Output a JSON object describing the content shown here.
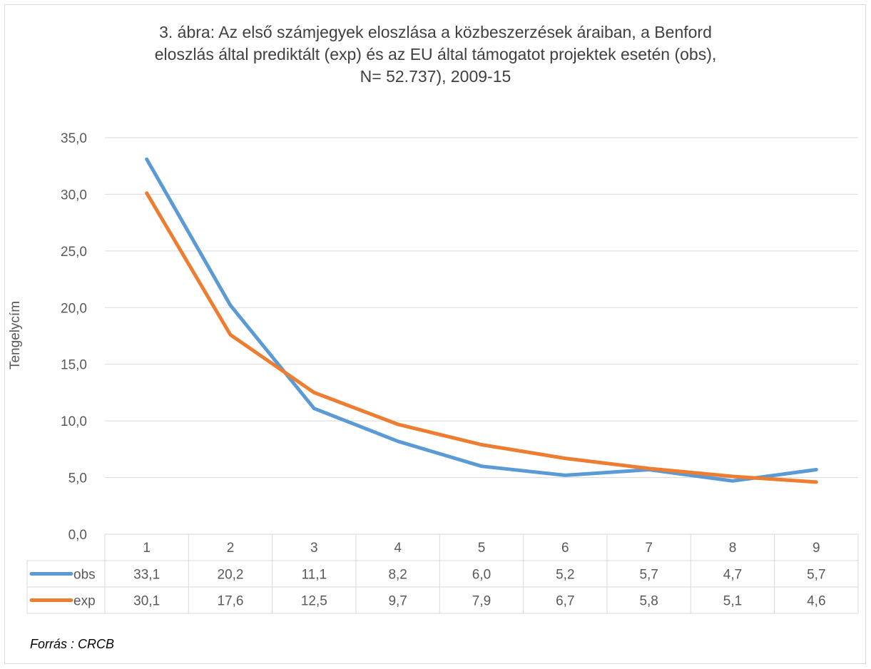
{
  "title_lines": [
    "3. ábra: Az első számjegyek eloszlása a közbeszerzések áraiban, a Benford",
    "eloszlás által prediktált (exp) és az EU által támogatot projektek esetén (obs),",
    "N= 52.737),  2009-15"
  ],
  "source": "Forrás : CRCB",
  "chart_data": {
    "type": "line",
    "title": "3. ábra: Az első számjegyek eloszlása a közbeszerzések áraiban, a Benford eloszlás által prediktált (exp) és az EU által támogatot projektek esetén (obs), N= 52.737),  2009-15",
    "xlabel": "",
    "ylabel": "Tengelycím",
    "ylim": [
      0,
      35
    ],
    "ytick_labels": [
      "0,0",
      "5,0",
      "10,0",
      "15,0",
      "20,0",
      "25,0",
      "30,0",
      "35,0"
    ],
    "categories": [
      "1",
      "2",
      "3",
      "4",
      "5",
      "6",
      "7",
      "8",
      "9"
    ],
    "grid": true,
    "legend": "data-table",
    "series": [
      {
        "name": "obs",
        "color": "#5b9bd5",
        "values": [
          33.1,
          20.2,
          11.1,
          8.2,
          6.0,
          5.2,
          5.7,
          4.7,
          5.7
        ],
        "labels": [
          "33,1",
          "20,2",
          "11,1",
          "8,2",
          "6,0",
          "5,2",
          "5,7",
          "4,7",
          "5,7"
        ]
      },
      {
        "name": "exp",
        "color": "#ed7d31",
        "values": [
          30.1,
          17.6,
          12.5,
          9.7,
          7.9,
          6.7,
          5.8,
          5.1,
          4.6
        ],
        "labels": [
          "30,1",
          "17,6",
          "12,5",
          "9,7",
          "7,9",
          "6,7",
          "5,8",
          "5,1",
          "4,6"
        ]
      }
    ]
  }
}
